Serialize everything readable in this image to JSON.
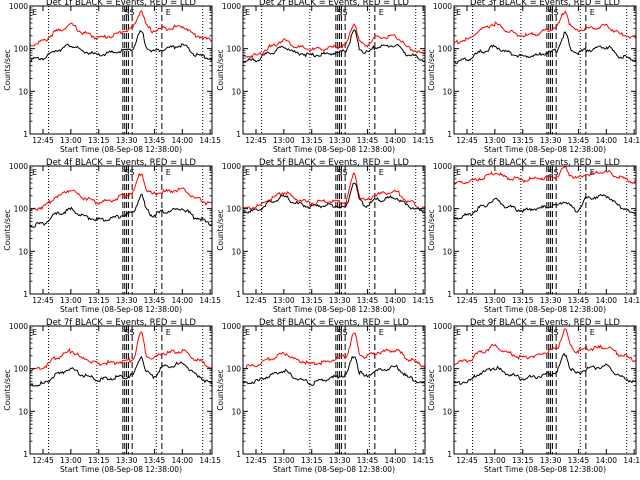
{
  "chart_data": {
    "type": "line",
    "yscale": "log",
    "ylim": [
      1,
      1000
    ],
    "xlim": [
      "12:38",
      "14:16"
    ],
    "x_ticks": [
      "12:45",
      "13:00",
      "13:15",
      "13:30",
      "13:45",
      "14:00",
      "14:15"
    ],
    "y_ticks": [
      "1",
      "10",
      "100",
      "1000"
    ],
    "ylabel": "Counts/sec",
    "xlabel": "Start Time (08-Sep-08 12:38:00)",
    "annotations": [
      "E",
      "SS",
      "E"
    ],
    "series_colors": {
      "events": "#000000",
      "lld": "#ff0000"
    },
    "panels": [
      {
        "title": "Det 1f BLACK = Events, RED = LLD",
        "events": {
          "x": [
            "12:38",
            "12:45",
            "12:53",
            "13:00",
            "13:07",
            "13:15",
            "13:22",
            "13:29",
            "13:33",
            "13:38",
            "13:41",
            "13:44",
            "13:50",
            "14:00",
            "14:08",
            "14:15"
          ],
          "y": [
            55,
            60,
            95,
            120,
            85,
            70,
            80,
            90,
            100,
            250,
            110,
            85,
            100,
            120,
            70,
            60
          ]
        },
        "lld": {
          "x": [
            "12:38",
            "12:45",
            "12:53",
            "13:00",
            "13:07",
            "13:15",
            "13:22",
            "13:29",
            "13:33",
            "13:38",
            "13:41",
            "13:44",
            "13:50",
            "14:00",
            "14:08",
            "14:15"
          ],
          "y": [
            120,
            150,
            260,
            360,
            230,
            180,
            200,
            260,
            300,
            780,
            320,
            260,
            300,
            330,
            200,
            160
          ]
        }
      },
      {
        "title": "Det 2f BLACK = Events, RED = LLD",
        "events": {
          "x": [
            "12:38",
            "12:45",
            "12:53",
            "13:00",
            "13:07",
            "13:15",
            "13:22",
            "13:29",
            "13:33",
            "13:38",
            "13:41",
            "13:44",
            "13:50",
            "14:00",
            "14:08",
            "14:15"
          ],
          "y": [
            50,
            55,
            80,
            110,
            80,
            70,
            75,
            80,
            90,
            250,
            100,
            80,
            110,
            120,
            70,
            55
          ]
        },
        "lld": {
          "x": [
            "12:38",
            "12:45",
            "12:53",
            "13:00",
            "13:07",
            "13:15",
            "13:22",
            "13:29",
            "13:33",
            "13:38",
            "13:41",
            "13:44",
            "13:50",
            "14:00",
            "14:08",
            "14:15"
          ],
          "y": [
            65,
            70,
            110,
            160,
            110,
            95,
            100,
            110,
            120,
            400,
            140,
            120,
            180,
            190,
            100,
            75
          ]
        }
      },
      {
        "title": "Det 3f BLACK = Events, RED = LLD",
        "events": {
          "x": [
            "12:38",
            "12:45",
            "12:53",
            "13:00",
            "13:07",
            "13:15",
            "13:22",
            "13:29",
            "13:33",
            "13:38",
            "13:41",
            "13:44",
            "13:50",
            "14:00",
            "14:08",
            "14:15"
          ],
          "y": [
            50,
            55,
            85,
            110,
            80,
            65,
            70,
            80,
            90,
            230,
            100,
            80,
            95,
            110,
            65,
            55
          ]
        },
        "lld": {
          "x": [
            "12:38",
            "12:45",
            "12:53",
            "13:00",
            "13:07",
            "13:15",
            "13:22",
            "13:29",
            "13:33",
            "13:38",
            "13:41",
            "13:44",
            "13:50",
            "14:00",
            "14:08",
            "14:15"
          ],
          "y": [
            140,
            160,
            280,
            380,
            260,
            200,
            220,
            280,
            320,
            780,
            330,
            270,
            300,
            330,
            220,
            180
          ]
        }
      },
      {
        "title": "Det 4f BLACK = Events, RED = LLD",
        "events": {
          "x": [
            "12:38",
            "12:45",
            "12:53",
            "13:00",
            "13:07",
            "13:15",
            "13:22",
            "13:29",
            "13:33",
            "13:38",
            "13:41",
            "13:44",
            "13:50",
            "14:00",
            "14:08",
            "14:15"
          ],
          "y": [
            40,
            45,
            75,
            95,
            65,
            55,
            60,
            70,
            80,
            200,
            90,
            70,
            85,
            100,
            60,
            45
          ]
        },
        "lld": {
          "x": [
            "12:38",
            "12:45",
            "12:53",
            "13:00",
            "13:07",
            "13:15",
            "13:22",
            "13:29",
            "13:33",
            "13:38",
            "13:41",
            "13:44",
            "13:50",
            "14:00",
            "14:08",
            "14:15"
          ],
          "y": [
            90,
            110,
            200,
            280,
            180,
            140,
            160,
            200,
            240,
            700,
            260,
            220,
            250,
            280,
            170,
            130
          ]
        }
      },
      {
        "title": "Det 5f BLACK = Events, RED = LLD",
        "events": {
          "x": [
            "12:38",
            "12:45",
            "12:53",
            "13:00",
            "13:07",
            "13:15",
            "13:22",
            "13:29",
            "13:33",
            "13:38",
            "13:41",
            "13:44",
            "13:50",
            "14:00",
            "14:08",
            "14:15"
          ],
          "y": [
            85,
            90,
            140,
            190,
            130,
            110,
            120,
            115,
            110,
            420,
            150,
            120,
            160,
            180,
            110,
            85
          ]
        },
        "lld": {
          "x": [
            "12:38",
            "12:45",
            "12:53",
            "13:00",
            "13:07",
            "13:15",
            "13:22",
            "13:29",
            "13:33",
            "13:38",
            "13:41",
            "13:44",
            "13:50",
            "14:00",
            "14:08",
            "14:15"
          ],
          "y": [
            100,
            110,
            170,
            240,
            165,
            135,
            150,
            145,
            140,
            650,
            190,
            150,
            220,
            250,
            140,
            105
          ]
        }
      },
      {
        "title": "Det 6f BLACK = Events, RED = LLD",
        "events": {
          "x": [
            "12:38",
            "12:45",
            "12:53",
            "13:00",
            "13:07",
            "13:15",
            "13:22",
            "13:29",
            "13:33",
            "13:38",
            "13:41",
            "13:44",
            "13:50",
            "14:00",
            "14:08",
            "14:15"
          ],
          "y": [
            60,
            70,
            110,
            160,
            110,
            90,
            100,
            110,
            120,
            150,
            110,
            90,
            180,
            200,
            110,
            75
          ]
        },
        "lld": {
          "x": [
            "12:38",
            "12:45",
            "12:53",
            "13:00",
            "13:07",
            "13:15",
            "13:22",
            "13:29",
            "13:33",
            "13:38",
            "13:41",
            "13:44",
            "13:50",
            "14:00",
            "14:08",
            "14:15"
          ],
          "y": [
            380,
            420,
            520,
            680,
            530,
            470,
            500,
            540,
            560,
            900,
            600,
            520,
            650,
            720,
            520,
            420
          ]
        }
      },
      {
        "title": "Det 7f BLACK = Events, RED = LLD",
        "events": {
          "x": [
            "12:38",
            "12:45",
            "12:53",
            "13:00",
            "13:07",
            "13:15",
            "13:22",
            "13:29",
            "13:33",
            "13:38",
            "13:41",
            "13:44",
            "13:50",
            "14:00",
            "14:08",
            "14:15"
          ],
          "y": [
            40,
            45,
            75,
            100,
            70,
            55,
            60,
            65,
            70,
            190,
            80,
            65,
            110,
            130,
            70,
            45
          ]
        },
        "lld": {
          "x": [
            "12:38",
            "12:45",
            "12:53",
            "13:00",
            "13:07",
            "13:15",
            "13:22",
            "13:29",
            "13:33",
            "13:38",
            "13:41",
            "13:44",
            "13:50",
            "14:00",
            "14:08",
            "14:15"
          ],
          "y": [
            90,
            110,
            190,
            260,
            170,
            130,
            140,
            150,
            160,
            650,
            200,
            170,
            230,
            260,
            160,
            110
          ]
        }
      },
      {
        "title": "Det 8f BLACK = Events, RED = LLD",
        "events": {
          "x": [
            "12:38",
            "12:45",
            "12:53",
            "13:00",
            "13:07",
            "13:15",
            "13:22",
            "13:29",
            "13:33",
            "13:38",
            "13:41",
            "13:44",
            "13:50",
            "14:00",
            "14:08",
            "14:15"
          ],
          "y": [
            45,
            50,
            70,
            90,
            60,
            45,
            55,
            65,
            70,
            210,
            80,
            65,
            90,
            110,
            60,
            45
          ]
        },
        "lld": {
          "x": [
            "12:38",
            "12:45",
            "12:53",
            "13:00",
            "13:07",
            "13:15",
            "13:22",
            "13:29",
            "13:33",
            "13:38",
            "13:41",
            "13:44",
            "13:50",
            "14:00",
            "14:08",
            "14:15"
          ],
          "y": [
            110,
            120,
            170,
            230,
            160,
            130,
            140,
            170,
            190,
            650,
            220,
            190,
            240,
            270,
            160,
            120
          ]
        }
      },
      {
        "title": "Det 9f BLACK = Events, RED = LLD",
        "events": {
          "x": [
            "12:38",
            "12:45",
            "12:53",
            "13:00",
            "13:07",
            "13:15",
            "13:22",
            "13:29",
            "13:33",
            "13:38",
            "13:41",
            "13:44",
            "13:50",
            "14:00",
            "14:08",
            "14:15"
          ],
          "y": [
            45,
            50,
            80,
            105,
            75,
            60,
            65,
            75,
            85,
            220,
            95,
            75,
            100,
            115,
            65,
            50
          ]
        },
        "lld": {
          "x": [
            "12:38",
            "12:45",
            "12:53",
            "13:00",
            "13:07",
            "13:15",
            "13:22",
            "13:29",
            "13:33",
            "13:38",
            "13:41",
            "13:44",
            "13:50",
            "14:00",
            "14:08",
            "14:15"
          ],
          "y": [
            130,
            150,
            250,
            340,
            230,
            180,
            200,
            260,
            300,
            820,
            320,
            260,
            290,
            320,
            210,
            160
          ]
        }
      }
    ],
    "vlines": {
      "dotted": [
        "12:48",
        "13:14",
        "13:46",
        "14:11"
      ],
      "dashed": [
        "13:28",
        "13:29",
        "13:30",
        "13:31",
        "13:33",
        "13:49"
      ]
    }
  }
}
